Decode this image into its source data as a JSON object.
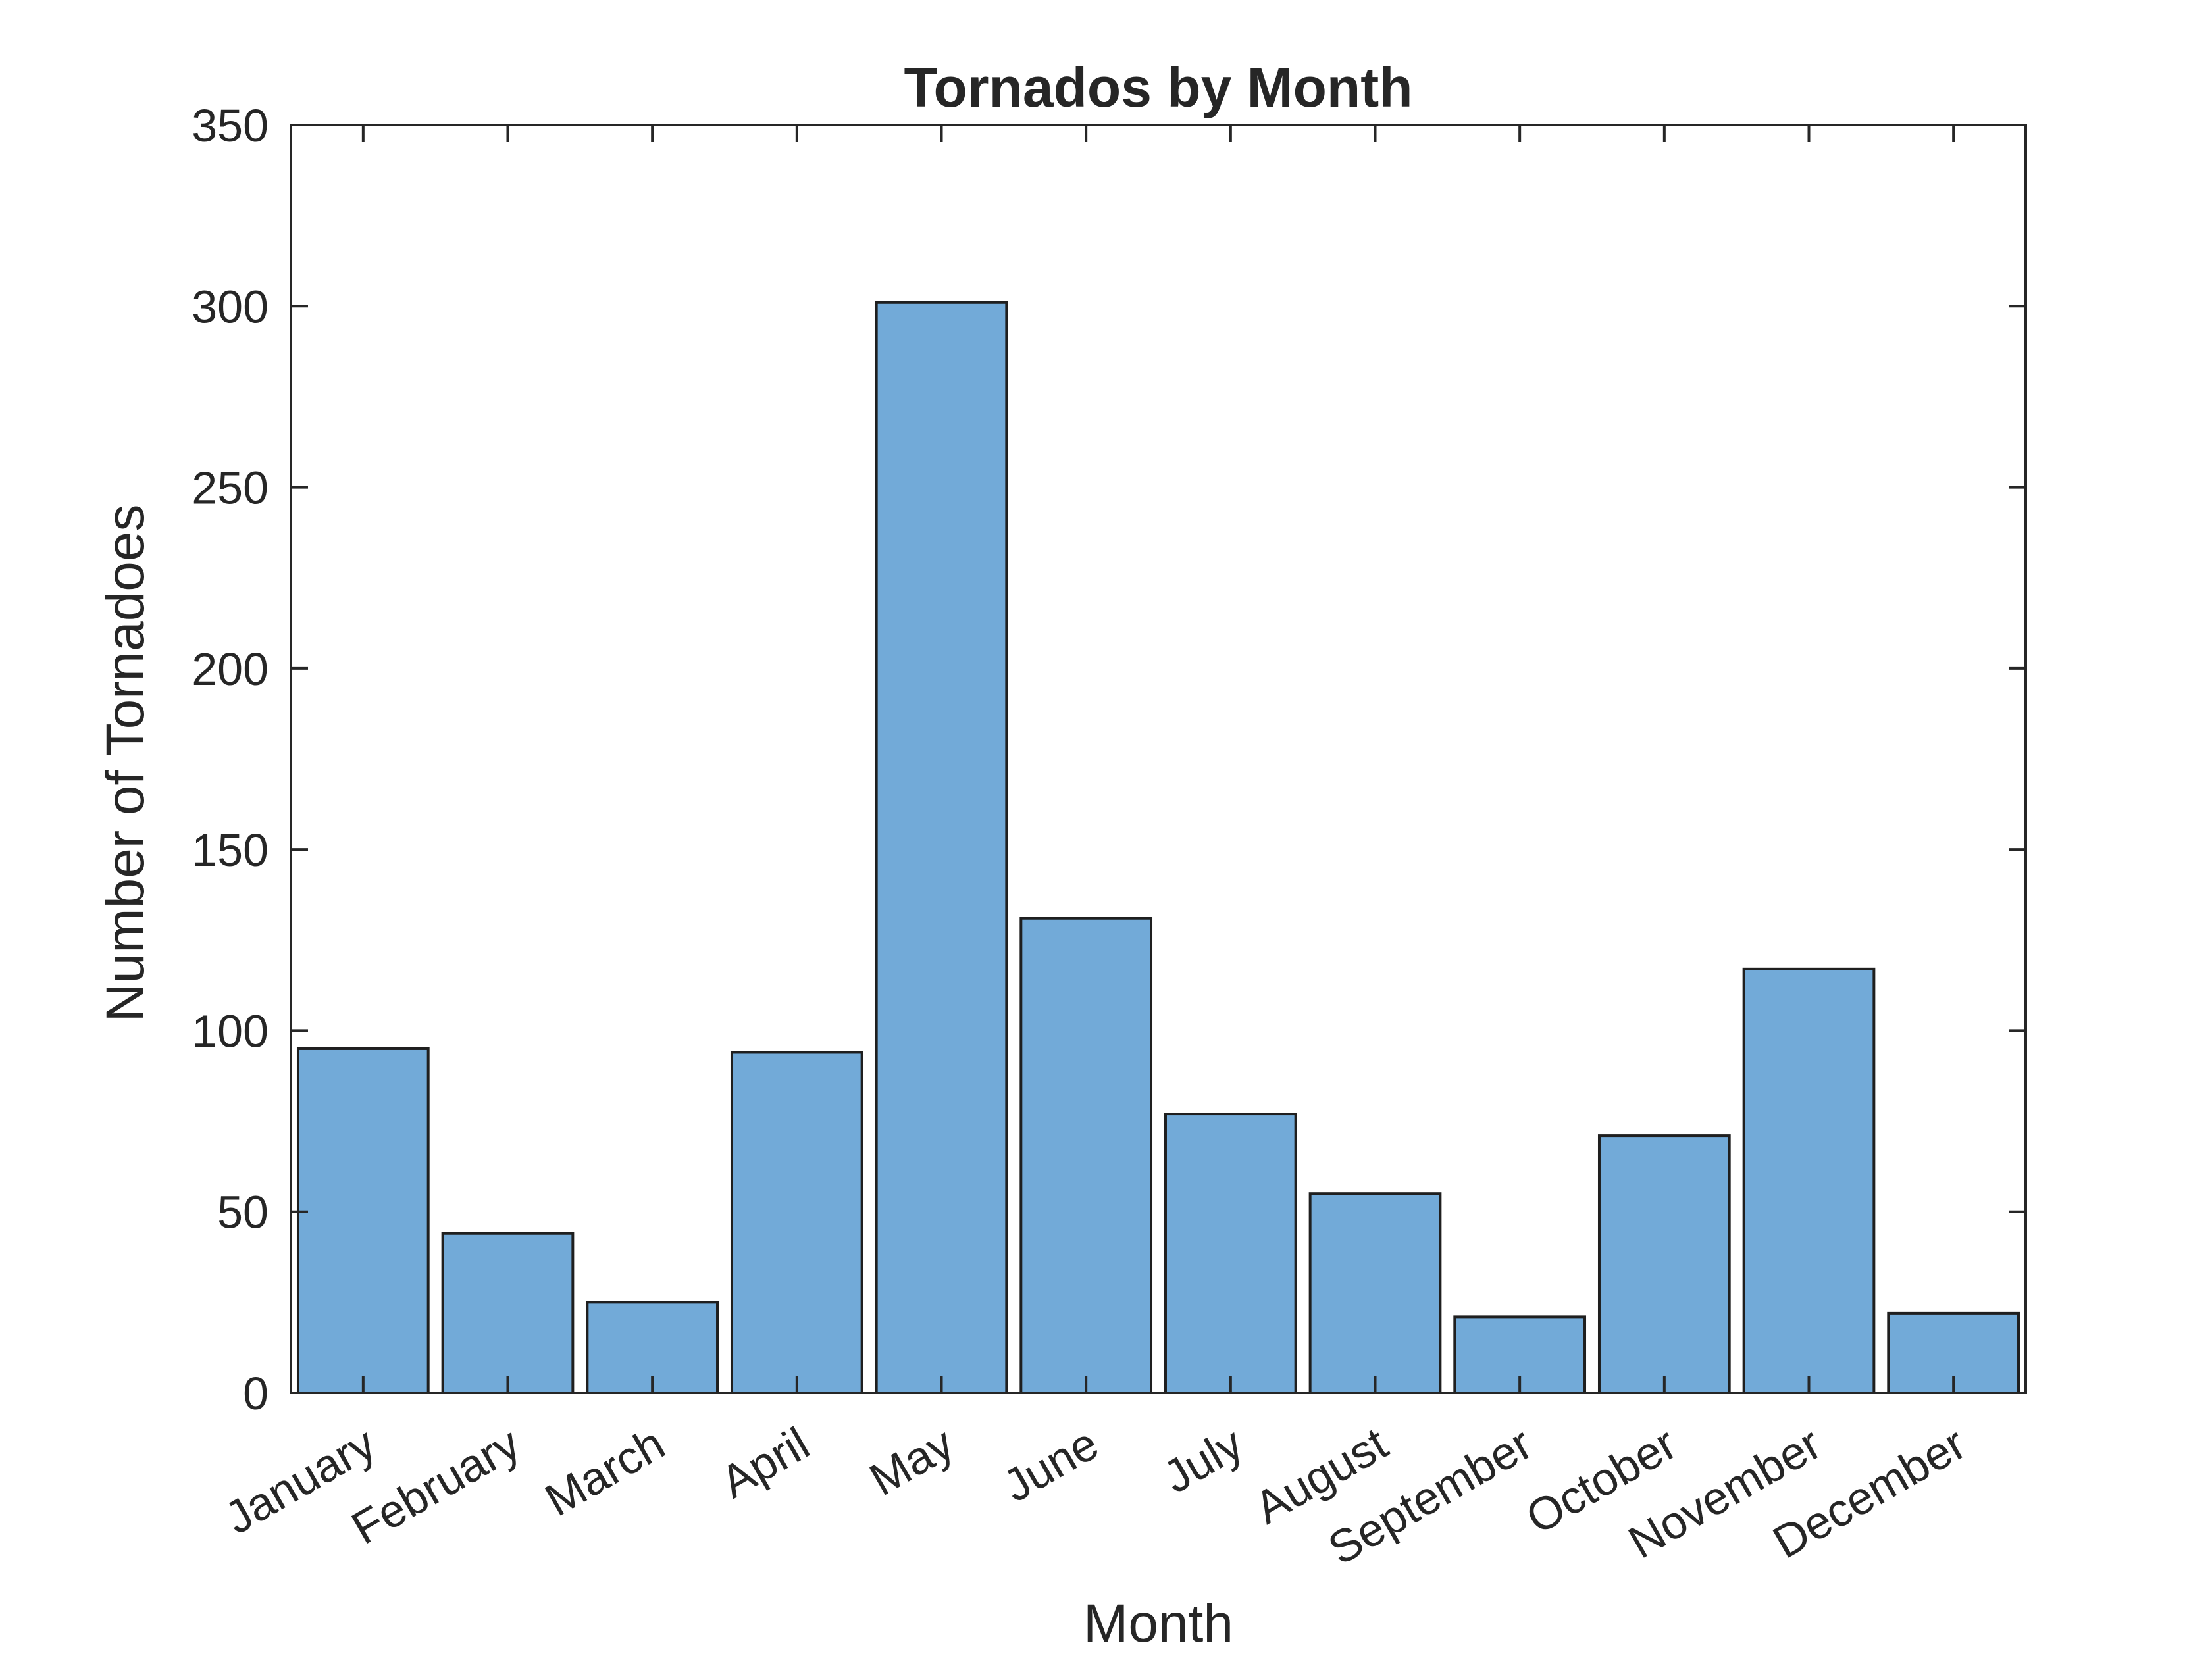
{
  "chart_data": {
    "type": "bar",
    "title": "Tornados by Month",
    "xlabel": "Month",
    "ylabel": "Number of Tornadoes",
    "categories": [
      "January",
      "February",
      "March",
      "April",
      "May",
      "June",
      "July",
      "August",
      "September",
      "October",
      "November",
      "December"
    ],
    "values": [
      95,
      44,
      25,
      94,
      301,
      131,
      77,
      55,
      21,
      71,
      117,
      22
    ],
    "ylim": [
      0,
      350
    ],
    "yticks": [
      0,
      50,
      100,
      150,
      200,
      250,
      300,
      350
    ],
    "grid": false,
    "legend": "none",
    "bar_color": "#72aad8",
    "edge_color": "#1f1f1f",
    "axis_color": "#262626"
  }
}
